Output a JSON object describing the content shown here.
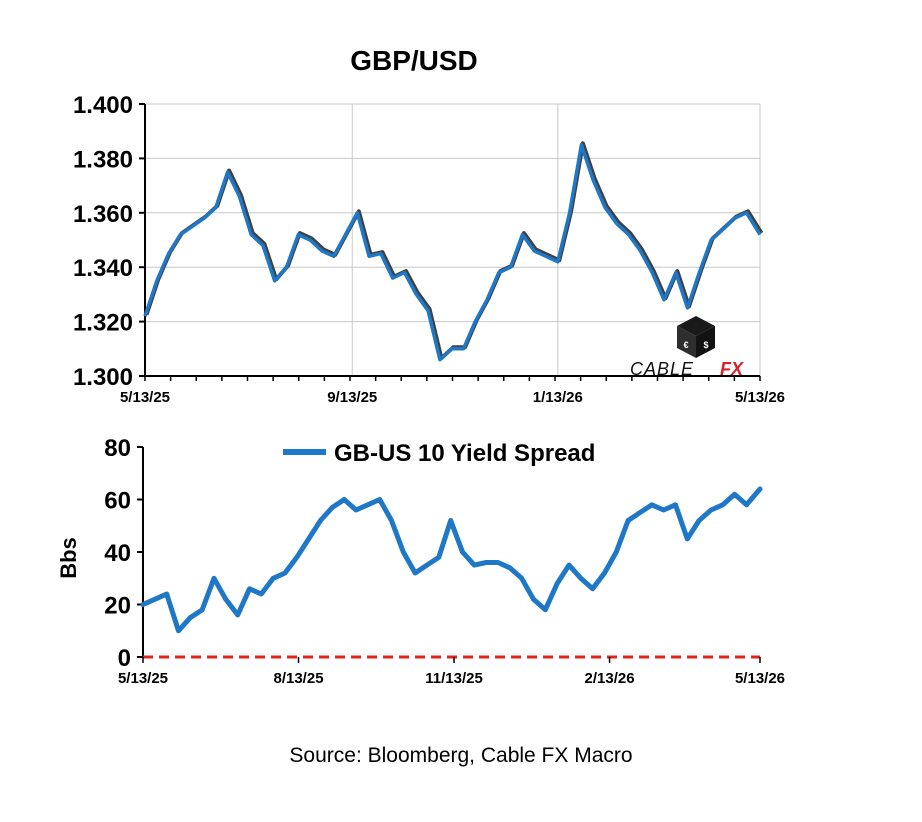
{
  "footer": {
    "source": "Source: Bloomberg, Cable FX Macro"
  },
  "logo": {
    "text_cable": "CABLE",
    "text_fx": "FX"
  },
  "colors": {
    "price_line": "#1f77c8",
    "price_shadow": "#404040",
    "spread_line": "#1f77c8",
    "zero_line": "#e8201c",
    "logo_red": "#d8222a"
  },
  "chart_data": [
    {
      "type": "line",
      "title": "GBP/USD",
      "xlabel": "",
      "ylabel": "",
      "ylim": [
        1.3,
        1.4
      ],
      "yticks": [
        "1.400",
        "1.380",
        "1.360",
        "1.340",
        "1.320",
        "1.300"
      ],
      "yticks_values": [
        1.4,
        1.38,
        1.36,
        1.34,
        1.32,
        1.3
      ],
      "xticks": [
        "5/13/25",
        "9/13/25",
        "1/13/26",
        "5/13/26"
      ],
      "xticks_dates": [
        "2025-05-13",
        "2025-09-13",
        "2026-01-13",
        "2026-05-13"
      ],
      "grid": true,
      "series": [
        {
          "x": [
            "2025-05-13",
            "2025-05-20",
            "2025-05-27",
            "2025-06-03",
            "2025-06-10",
            "2025-06-17",
            "2025-06-24",
            "2025-07-01",
            "2025-07-08",
            "2025-07-15",
            "2025-07-22",
            "2025-07-29",
            "2025-08-05",
            "2025-08-12",
            "2025-08-19",
            "2025-08-26",
            "2025-09-02",
            "2025-09-09",
            "2025-09-16",
            "2025-09-23",
            "2025-09-30",
            "2025-10-07",
            "2025-10-14",
            "2025-10-21",
            "2025-10-28",
            "2025-11-04",
            "2025-11-11",
            "2025-11-18",
            "2025-11-25",
            "2025-12-02",
            "2025-12-09",
            "2025-12-16",
            "2025-12-23",
            "2025-12-30",
            "2026-01-06",
            "2026-01-13",
            "2026-01-20",
            "2026-01-27",
            "2026-02-03",
            "2026-02-10",
            "2026-02-17",
            "2026-02-24",
            "2026-03-03",
            "2026-03-10",
            "2026-03-17",
            "2026-03-24",
            "2026-03-31",
            "2026-04-07",
            "2026-04-14",
            "2026-04-21",
            "2026-04-28",
            "2026-05-05",
            "2026-05-13"
          ],
          "values": [
            1.322,
            1.335,
            1.345,
            1.352,
            1.355,
            1.358,
            1.362,
            1.375,
            1.366,
            1.352,
            1.348,
            1.335,
            1.34,
            1.352,
            1.35,
            1.346,
            1.344,
            1.352,
            1.36,
            1.344,
            1.345,
            1.336,
            1.338,
            1.33,
            1.324,
            1.306,
            1.31,
            1.31,
            1.32,
            1.328,
            1.338,
            1.34,
            1.352,
            1.346,
            1.344,
            1.342,
            1.36,
            1.385,
            1.372,
            1.362,
            1.356,
            1.352,
            1.346,
            1.338,
            1.328,
            1.338,
            1.325,
            1.338,
            1.35,
            1.354,
            1.358,
            1.36,
            1.352
          ]
        }
      ]
    },
    {
      "type": "line",
      "title": "",
      "xlabel": "",
      "ylabel": "Bbs",
      "ylim": [
        0,
        80
      ],
      "yticks": [
        "80",
        "60",
        "40",
        "20",
        "0"
      ],
      "yticks_values": [
        80,
        60,
        40,
        20,
        0
      ],
      "xticks": [
        "5/13/25",
        "8/13/25",
        "11/13/25",
        "2/13/26",
        "5/13/26"
      ],
      "xticks_dates": [
        "2025-05-13",
        "2025-08-13",
        "2025-11-13",
        "2026-02-13",
        "2026-05-13"
      ],
      "legend": "top-center",
      "reference_line": {
        "y": 0,
        "style": "dashed"
      },
      "series": [
        {
          "name": "GB-US 10 Yield Spread",
          "x": [
            "2025-05-13",
            "2025-05-20",
            "2025-05-27",
            "2025-06-03",
            "2025-06-10",
            "2025-06-17",
            "2025-06-24",
            "2025-07-01",
            "2025-07-08",
            "2025-07-15",
            "2025-07-22",
            "2025-07-29",
            "2025-08-05",
            "2025-08-12",
            "2025-08-19",
            "2025-08-26",
            "2025-09-02",
            "2025-09-09",
            "2025-09-16",
            "2025-09-23",
            "2025-09-30",
            "2025-10-07",
            "2025-10-14",
            "2025-10-21",
            "2025-10-28",
            "2025-11-04",
            "2025-11-11",
            "2025-11-18",
            "2025-11-25",
            "2025-12-02",
            "2025-12-09",
            "2025-12-16",
            "2025-12-23",
            "2025-12-30",
            "2026-01-06",
            "2026-01-13",
            "2026-01-20",
            "2026-01-27",
            "2026-02-03",
            "2026-02-10",
            "2026-02-17",
            "2026-02-24",
            "2026-03-03",
            "2026-03-10",
            "2026-03-17",
            "2026-03-24",
            "2026-03-31",
            "2026-04-07",
            "2026-04-14",
            "2026-04-21",
            "2026-04-28",
            "2026-05-05",
            "2026-05-13"
          ],
          "values": [
            20,
            22,
            24,
            10,
            15,
            18,
            30,
            22,
            16,
            26,
            24,
            30,
            32,
            38,
            45,
            52,
            57,
            60,
            56,
            58,
            60,
            52,
            40,
            32,
            35,
            38,
            52,
            40,
            35,
            36,
            36,
            34,
            30,
            22,
            18,
            28,
            35,
            30,
            26,
            32,
            40,
            52,
            55,
            58,
            56,
            58,
            45,
            52,
            56,
            58,
            62,
            58,
            64
          ]
        }
      ]
    }
  ]
}
